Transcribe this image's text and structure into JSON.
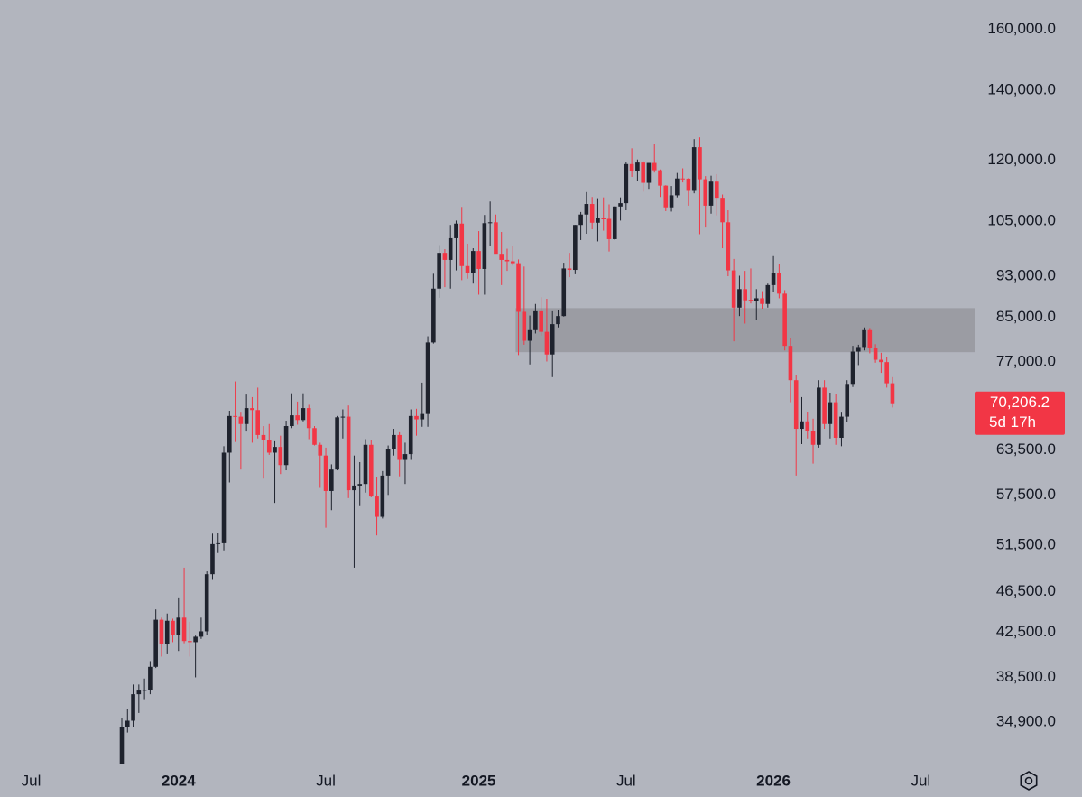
{
  "chart_data": {
    "type": "candlestick",
    "log_scale": true,
    "background": "#b2b5be",
    "up_color": "#1e222d",
    "down_color": "#f23645",
    "ylim": [
      31850,
      170700
    ],
    "yticks": [
      {
        "value": 160000,
        "label": "160,000.0"
      },
      {
        "value": 140000,
        "label": "140,000.0"
      },
      {
        "value": 120000,
        "label": "120,000.0"
      },
      {
        "value": 105000,
        "label": "105,000.0"
      },
      {
        "value": 93000,
        "label": "93,000.0"
      },
      {
        "value": 85000,
        "label": "85,000.0"
      },
      {
        "value": 77000,
        "label": "77,000.0"
      },
      {
        "value": 63500,
        "label": "63,500.0"
      },
      {
        "value": 57500,
        "label": "57,500.0"
      },
      {
        "value": 51500,
        "label": "51,500.0"
      },
      {
        "value": 46500,
        "label": "46,500.0"
      },
      {
        "value": 42500,
        "label": "42,500.0"
      },
      {
        "value": 38500,
        "label": "38,500.0"
      },
      {
        "value": 34900,
        "label": "34,900.0"
      }
    ],
    "zone": {
      "start_category_index": 91,
      "top": 86700,
      "bottom": 78700,
      "color": "#96989f"
    },
    "last_price": {
      "value": 70206.2,
      "label": "70,206.2",
      "countdown": "5d 17h",
      "color": "#f23645"
    },
    "categories": [
      null,
      null,
      null,
      null,
      null,
      "Jul",
      null,
      null,
      null,
      null,
      null,
      null,
      null,
      null,
      null,
      null,
      null,
      null,
      null,
      null,
      null,
      null,
      null,
      null,
      null,
      null,
      null,
      null,
      null,
      null,
      null,
      "2024",
      null,
      null,
      null,
      null,
      null,
      null,
      null,
      null,
      null,
      null,
      null,
      null,
      null,
      null,
      null,
      null,
      null,
      null,
      null,
      null,
      null,
      null,
      null,
      null,
      null,
      "Jul",
      null,
      null,
      null,
      null,
      null,
      null,
      null,
      null,
      null,
      null,
      null,
      null,
      null,
      null,
      null,
      null,
      null,
      null,
      null,
      null,
      null,
      null,
      null,
      null,
      null,
      null,
      "2025",
      null,
      null,
      null,
      null,
      null,
      null,
      null,
      null,
      null,
      null,
      null,
      null,
      null,
      null,
      null,
      null,
      null,
      null,
      null,
      null,
      null,
      null,
      null,
      null,
      null,
      "Jul",
      null,
      null,
      null,
      null,
      null,
      null,
      null,
      null,
      null,
      null,
      null,
      null,
      null,
      null,
      null,
      null,
      null,
      null,
      null,
      null,
      null,
      null,
      null,
      null,
      null,
      "2026",
      null,
      null,
      null,
      null,
      null,
      null,
      null,
      null,
      null,
      null,
      null,
      null,
      null,
      null,
      null,
      null,
      null,
      null,
      null,
      null,
      null,
      null,
      null,
      null,
      null,
      "Jul",
      null,
      null,
      null,
      null,
      null,
      null,
      null,
      null,
      null
    ],
    "ohlc": [
      null,
      null,
      null,
      null,
      null,
      null,
      null,
      null,
      null,
      null,
      null,
      null,
      null,
      null,
      null,
      null,
      null,
      null,
      null,
      null,
      null,
      [
        30000,
        35200,
        29800,
        34500
      ],
      [
        34500,
        35900,
        34100,
        35000
      ],
      [
        35000,
        37900,
        34500,
        37100
      ],
      [
        37100,
        37900,
        35600,
        37400
      ],
      [
        37400,
        38400,
        36700,
        37450
      ],
      [
        37450,
        39900,
        37100,
        39400
      ],
      [
        39400,
        44700,
        39300,
        43700
      ],
      [
        43700,
        43900,
        40300,
        41400
      ],
      [
        41400,
        44300,
        40500,
        43600
      ],
      [
        43600,
        43800,
        41600,
        42300
      ],
      [
        42300,
        45900,
        40800,
        43900
      ],
      [
        43900,
        49000,
        41500,
        41700
      ],
      [
        41700,
        43500,
        40300,
        41600
      ],
      [
        41600,
        42200,
        38500,
        42100
      ],
      [
        42100,
        43900,
        41900,
        42600
      ],
      [
        42600,
        48600,
        42300,
        48300
      ],
      [
        48300,
        52800,
        47700,
        51600
      ],
      [
        51600,
        52900,
        50600,
        51700
      ],
      [
        51700,
        64000,
        50900,
        63100
      ],
      [
        63100,
        69200,
        59100,
        68400
      ],
      [
        68400,
        73800,
        64600,
        68300
      ],
      [
        68300,
        68900,
        60800,
        67200
      ],
      [
        67200,
        71700,
        66100,
        69600
      ],
      [
        69600,
        71300,
        64500,
        69300
      ],
      [
        69300,
        72800,
        65100,
        65600
      ],
      [
        65600,
        66900,
        59600,
        64900
      ],
      [
        64900,
        67200,
        62800,
        63100
      ],
      [
        63100,
        64700,
        56500,
        63900
      ],
      [
        63900,
        65500,
        60200,
        61400
      ],
      [
        61400,
        67700,
        60700,
        66900
      ],
      [
        66900,
        71900,
        66600,
        68500
      ],
      [
        68500,
        70600,
        67100,
        67800
      ],
      [
        67800,
        71900,
        67600,
        69600
      ],
      [
        69600,
        70100,
        65000,
        66600
      ],
      [
        66600,
        66900,
        64100,
        64200
      ],
      [
        64200,
        64500,
        58400,
        62700
      ],
      [
        62700,
        63800,
        53500,
        58000
      ],
      [
        58000,
        61500,
        55600,
        60800
      ],
      [
        60800,
        68400,
        60700,
        68200
      ],
      [
        68200,
        69400,
        65100,
        68300
      ],
      [
        68300,
        70000,
        57100,
        58100
      ],
      [
        58100,
        62700,
        49000,
        58700
      ],
      [
        58700,
        61800,
        56100,
        58900
      ],
      [
        58900,
        65000,
        57800,
        64200
      ],
      [
        64200,
        64900,
        57200,
        57300
      ],
      [
        57300,
        59800,
        52600,
        54800
      ],
      [
        54800,
        60600,
        54600,
        60000
      ],
      [
        60000,
        64100,
        57500,
        63600
      ],
      [
        63600,
        66500,
        62700,
        65600
      ],
      [
        65600,
        66000,
        59900,
        62100
      ],
      [
        62100,
        64500,
        58900,
        62900
      ],
      [
        62900,
        69400,
        62100,
        68400
      ],
      [
        68400,
        69500,
        65500,
        67900
      ],
      [
        67900,
        73600,
        66800,
        68700
      ],
      [
        68700,
        81500,
        66800,
        80400
      ],
      [
        80400,
        93500,
        80200,
        90500
      ],
      [
        90500,
        99600,
        88700,
        97900
      ],
      [
        97900,
        98700,
        90800,
        96400
      ],
      [
        96400,
        104100,
        90500,
        101100
      ],
      [
        101100,
        105100,
        94200,
        104400
      ],
      [
        104400,
        108300,
        92200,
        95100
      ],
      [
        95100,
        99900,
        92500,
        93700
      ],
      [
        93700,
        98900,
        91500,
        98300
      ],
      [
        98300,
        102700,
        89300,
        94500
      ],
      [
        94500,
        106400,
        89300,
        104500
      ],
      [
        104500,
        109600,
        99500,
        104700
      ],
      [
        104700,
        106500,
        97800,
        97700
      ],
      [
        97700,
        102500,
        91200,
        96400
      ],
      [
        96400,
        98800,
        94100,
        96100
      ],
      [
        96100,
        99500,
        95200,
        95700
      ],
      [
        95700,
        96500,
        78200,
        86000
      ],
      [
        86000,
        95000,
        80000,
        80700
      ],
      [
        80700,
        85300,
        76600,
        82600
      ],
      [
        82600,
        87500,
        82000,
        86100
      ],
      [
        86100,
        88800,
        81600,
        82300
      ],
      [
        82300,
        88500,
        77100,
        78300
      ],
      [
        78300,
        86100,
        74500,
        83700
      ],
      [
        83700,
        86400,
        83100,
        85200
      ],
      [
        85200,
        95800,
        85100,
        94600
      ],
      [
        94600,
        97900,
        92800,
        94300
      ],
      [
        94300,
        104100,
        93400,
        104100
      ],
      [
        104100,
        107100,
        100700,
        106500
      ],
      [
        106500,
        111900,
        102100,
        109000
      ],
      [
        109000,
        110700,
        103100,
        104600
      ],
      [
        104600,
        110400,
        100400,
        105600
      ],
      [
        105600,
        110600,
        102800,
        105500
      ],
      [
        105500,
        108900,
        98200,
        100900
      ],
      [
        100900,
        108500,
        100700,
        108400
      ],
      [
        108400,
        110600,
        105100,
        109200
      ],
      [
        109200,
        119500,
        107500,
        119000
      ],
      [
        119000,
        123200,
        115700,
        117300
      ],
      [
        117300,
        120200,
        114700,
        119400
      ],
      [
        119400,
        119800,
        112000,
        114200
      ],
      [
        114200,
        119300,
        112700,
        119300
      ],
      [
        119300,
        124500,
        116800,
        117400
      ],
      [
        117400,
        117600,
        110700,
        113500
      ],
      [
        113500,
        113600,
        107300,
        108200
      ],
      [
        108200,
        113400,
        107200,
        111100
      ],
      [
        111100,
        116700,
        110600,
        115300
      ],
      [
        115300,
        117900,
        114300,
        115250
      ],
      [
        115250,
        115400,
        108600,
        112200
      ],
      [
        112200,
        125700,
        111600,
        123500
      ],
      [
        123500,
        126200,
        102000,
        115100
      ],
      [
        115100,
        115900,
        103500,
        108600
      ],
      [
        108600,
        116000,
        106700,
        114500
      ],
      [
        114500,
        116400,
        106300,
        110500
      ],
      [
        110500,
        111300,
        98900,
        104700
      ],
      [
        104700,
        107500,
        93000,
        94200
      ],
      [
        94200,
        96600,
        80600,
        86800
      ],
      [
        86800,
        93100,
        85200,
        90400
      ],
      [
        90400,
        94100,
        83800,
        88200
      ],
      [
        88300,
        94600,
        87600,
        88100
      ],
      [
        88100,
        90400,
        84400,
        88600
      ],
      [
        88600,
        90000,
        86600,
        87500
      ],
      [
        87500,
        91500,
        86800,
        91200
      ],
      [
        91200,
        97200,
        89800,
        93700
      ],
      [
        93700,
        95600,
        88600,
        89500
      ],
      [
        89500,
        90200,
        79000,
        79800
      ],
      [
        79800,
        81200,
        70500,
        74000
      ],
      [
        74000,
        74800,
        60000,
        66500
      ],
      [
        66500,
        71300,
        64300,
        67600
      ],
      [
        67600,
        69000,
        65100,
        66200
      ],
      [
        66200,
        68000,
        61600,
        64200
      ],
      [
        64200,
        74000,
        63800,
        72800
      ],
      [
        72800,
        74000,
        66500,
        67200
      ],
      [
        67200,
        72000,
        65100,
        70500
      ],
      [
        70500,
        71800,
        64200,
        65200
      ],
      [
        65200,
        68900,
        64000,
        68300
      ],
      [
        68300,
        74000,
        67500,
        73400
      ],
      [
        73400,
        79800,
        72900,
        78800
      ],
      [
        78800,
        80000,
        76500,
        79600
      ],
      [
        79600,
        83100,
        79000,
        82600
      ],
      [
        82600,
        83000,
        78500,
        79400
      ],
      [
        79400,
        80100,
        76900,
        77400
      ],
      [
        77400,
        78600,
        75200,
        77000
      ],
      [
        77000,
        77800,
        72800,
        73500
      ],
      [
        73500,
        74500,
        69700,
        70206.2
      ],
      null,
      null,
      null,
      null,
      null,
      null,
      null,
      null,
      null,
      null,
      null,
      null,
      null,
      null
    ]
  }
}
